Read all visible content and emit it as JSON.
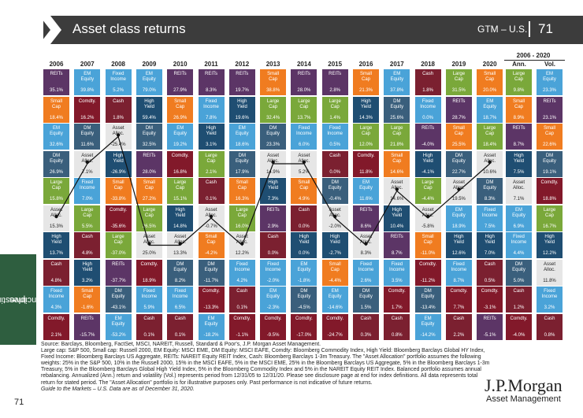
{
  "header": {
    "title": "Asset class returns",
    "series": "GTM – U.S.",
    "page": "71"
  },
  "side_tab": {
    "label": "Investing principles",
    "line1": "Investing",
    "line2": "principles"
  },
  "footer": {
    "page": "71"
  },
  "colors": {
    "REITs": "#5c3566",
    "EM Equity": "#4aa3d8",
    "Fixed Income": "#4aa3d8",
    "Small Cap": "#f07c20",
    "Cash": "#7b2030",
    "Comdty.": "#82192a",
    "DM Equity": "#3a5f7c",
    "Large Cap": "#7aa83a",
    "High Yield": "#1f4e72",
    "Asset Alloc.": "#e6e6e6"
  },
  "chart_data": {
    "type": "table",
    "title": "Asset class returns",
    "years": [
      "2006",
      "2007",
      "2008",
      "2009",
      "2010",
      "2011",
      "2012",
      "2013",
      "2014",
      "2015",
      "2016",
      "2017",
      "2018",
      "2019",
      "2020"
    ],
    "summary_header": {
      "range": "2006 - 2020",
      "ann": "Ann.",
      "vol": "Vol."
    },
    "columns": [
      [
        [
          "REITs",
          "35.1%"
        ],
        [
          "Small Cap",
          "18.4%"
        ],
        [
          "EM Equity",
          "32.6%"
        ],
        [
          "DM Equity",
          "26.9%"
        ],
        [
          "Large Cap",
          "15.8%"
        ],
        [
          "Asset Alloc.",
          "15.3%"
        ],
        [
          "High Yield",
          "13.7%"
        ],
        [
          "Cash",
          "4.8%"
        ],
        [
          "Fixed Income",
          "4.3%"
        ],
        [
          "Comdty.",
          "2.1%"
        ]
      ],
      [
        [
          "EM Equity",
          "39.8%"
        ],
        [
          "Comdty.",
          "16.2%"
        ],
        [
          "DM Equity",
          "11.6%"
        ],
        [
          "Asset Alloc.",
          "7.1%"
        ],
        [
          "Fixed Income",
          "7.0%"
        ],
        [
          "Large Cap",
          "5.5%"
        ],
        [
          "Cash",
          "4.8%"
        ],
        [
          "High Yield",
          "3.2%"
        ],
        [
          "Small Cap",
          "-1.6%"
        ],
        [
          "REITs",
          "-15.7%"
        ]
      ],
      [
        [
          "Fixed Income",
          "5.2%"
        ],
        [
          "Cash",
          "1.8%"
        ],
        [
          "Asset Alloc.",
          "-25.4%"
        ],
        [
          "High Yield",
          "-26.9%"
        ],
        [
          "Small Cap",
          "-33.8%"
        ],
        [
          "Comdty.",
          "-35.6%"
        ],
        [
          "Large Cap",
          "-37.0%"
        ],
        [
          "REITs",
          "-37.7%"
        ],
        [
          "DM Equity",
          "-43.1%"
        ],
        [
          "EM Equity",
          "-53.2%"
        ]
      ],
      [
        [
          "EM Equity",
          "79.0%"
        ],
        [
          "High Yield",
          "59.4%"
        ],
        [
          "DM Equity",
          "32.5%"
        ],
        [
          "REITs",
          "28.0%"
        ],
        [
          "Small Cap",
          "27.2%"
        ],
        [
          "Large Cap",
          "26.5%"
        ],
        [
          "Asset Alloc.",
          "25.0%"
        ],
        [
          "Comdty.",
          "18.9%"
        ],
        [
          "Fixed Income",
          "5.9%"
        ],
        [
          "Cash",
          "0.1%"
        ]
      ],
      [
        [
          "REITs",
          "27.9%"
        ],
        [
          "Small Cap",
          "26.9%"
        ],
        [
          "EM Equity",
          "19.2%"
        ],
        [
          "Comdty.",
          "16.8%"
        ],
        [
          "Large Cap",
          "15.1%"
        ],
        [
          "High Yield",
          "14.8%"
        ],
        [
          "Asset Alloc.",
          "13.3%"
        ],
        [
          "DM Equity",
          "8.2%"
        ],
        [
          "Fixed Income",
          "6.5%"
        ],
        [
          "Cash",
          "0.1%"
        ]
      ],
      [
        [
          "REITs",
          "8.3%"
        ],
        [
          "Fixed Income",
          "7.8%"
        ],
        [
          "High Yield",
          "3.1%"
        ],
        [
          "Large Cap",
          "2.1%"
        ],
        [
          "Cash",
          "0.1%"
        ],
        [
          "Asset Alloc.",
          "-0.7%"
        ],
        [
          "Small Cap",
          "-4.2%"
        ],
        [
          "DM Equity",
          "-11.7%"
        ],
        [
          "Comdty.",
          "-13.3%"
        ],
        [
          "EM Equity",
          "-18.2%"
        ]
      ],
      [
        [
          "REITs",
          "19.7%"
        ],
        [
          "High Yield",
          "19.6%"
        ],
        [
          "EM Equity",
          "18.6%"
        ],
        [
          "DM Equity",
          "17.9%"
        ],
        [
          "Small Cap",
          "16.3%"
        ],
        [
          "Large Cap",
          "16.0%"
        ],
        [
          "Asset Alloc.",
          "12.2%"
        ],
        [
          "Fixed Income",
          "4.2%"
        ],
        [
          "Cash",
          "0.1%"
        ],
        [
          "Comdty.",
          "-1.1%"
        ]
      ],
      [
        [
          "Small Cap",
          "38.8%"
        ],
        [
          "Large Cap",
          "32.4%"
        ],
        [
          "DM Equity",
          "23.3%"
        ],
        [
          "Asset Alloc.",
          "14.9%"
        ],
        [
          "High Yield",
          "7.3%"
        ],
        [
          "REITs",
          "2.9%"
        ],
        [
          "Cash",
          "0.0%"
        ],
        [
          "Fixed Income",
          "-2.0%"
        ],
        [
          "EM Equity",
          "-2.3%"
        ],
        [
          "Comdty.",
          "-9.5%"
        ]
      ],
      [
        [
          "REITs",
          "28.0%"
        ],
        [
          "Large Cap",
          "13.7%"
        ],
        [
          "Fixed Income",
          "6.0%"
        ],
        [
          "Asset Alloc.",
          "5.2%"
        ],
        [
          "Small Cap",
          "4.9%"
        ],
        [
          "Cash",
          "0.0%"
        ],
        [
          "High Yield",
          "0.0%"
        ],
        [
          "EM Equity",
          "-1.8%"
        ],
        [
          "DM Equity",
          "-4.5%"
        ],
        [
          "Comdty.",
          "-17.0%"
        ]
      ],
      [
        [
          "REITs",
          "2.8%"
        ],
        [
          "Large Cap",
          "1.4%"
        ],
        [
          "Fixed Income",
          "0.5%"
        ],
        [
          "Cash",
          "0.0%"
        ],
        [
          "DM Equity",
          "-0.4%"
        ],
        [
          "Asset Alloc.",
          "-2.0%"
        ],
        [
          "High Yield",
          "-2.7%"
        ],
        [
          "Small Cap",
          "-4.4%"
        ],
        [
          "EM Equity",
          "-14.6%"
        ],
        [
          "Comdty.",
          "-24.7%"
        ]
      ],
      [
        [
          "Small Cap",
          "21.3%"
        ],
        [
          "High Yield",
          "14.3%"
        ],
        [
          "Large Cap",
          "12.0%"
        ],
        [
          "Comdty.",
          "11.8%"
        ],
        [
          "EM Equity",
          "11.6%"
        ],
        [
          "REITs",
          "8.6%"
        ],
        [
          "Asset Alloc.",
          "8.3%"
        ],
        [
          "Fixed Income",
          "2.6%"
        ],
        [
          "DM Equity",
          "1.5%"
        ],
        [
          "Cash",
          "0.3%"
        ]
      ],
      [
        [
          "EM Equity",
          "37.8%"
        ],
        [
          "DM Equity",
          "25.6%"
        ],
        [
          "Large Cap",
          "21.8%"
        ],
        [
          "Small Cap",
          "14.6%"
        ],
        [
          "Asset Alloc.",
          "14.6%"
        ],
        [
          "High Yield",
          "10.4%"
        ],
        [
          "REITs",
          "8.7%"
        ],
        [
          "Fixed Income",
          "3.5%"
        ],
        [
          "Comdty.",
          "1.7%"
        ],
        [
          "Cash",
          "0.8%"
        ]
      ],
      [
        [
          "Cash",
          "1.8%"
        ],
        [
          "Fixed Income",
          "0.0%"
        ],
        [
          "REITs",
          "-4.0%"
        ],
        [
          "High Yield",
          "-4.1%"
        ],
        [
          "Large Cap",
          "-4.4%"
        ],
        [
          "Asset Alloc.",
          "-5.8%"
        ],
        [
          "Small Cap",
          "-11.0%"
        ],
        [
          "Comdty.",
          "-11.2%"
        ],
        [
          "DM Equity",
          "-13.4%"
        ],
        [
          "EM Equity",
          "-14.2%"
        ]
      ],
      [
        [
          "Large Cap",
          "31.5%"
        ],
        [
          "REITs",
          "28.7%"
        ],
        [
          "Small Cap",
          "25.5%"
        ],
        [
          "DM Equity",
          "22.7%"
        ],
        [
          "Asset Alloc.",
          "19.5%"
        ],
        [
          "EM Equity",
          "18.9%"
        ],
        [
          "High Yield",
          "12.6%"
        ],
        [
          "Fixed Income",
          "8.7%"
        ],
        [
          "Comdty.",
          "7.7%"
        ],
        [
          "Cash",
          "2.2%"
        ]
      ],
      [
        [
          "Small Cap",
          "20.0%"
        ],
        [
          "EM Equity",
          "18.7%"
        ],
        [
          "Large Cap",
          "18.4%"
        ],
        [
          "Asset Alloc.",
          "10.6%"
        ],
        [
          "DM Equity",
          "8.3%"
        ],
        [
          "Fixed Income",
          "7.5%"
        ],
        [
          "High Yield",
          "7.0%"
        ],
        [
          "Cash",
          "0.5%"
        ],
        [
          "Comdty.",
          "-3.1%"
        ],
        [
          "REITs",
          "-5.1%"
        ]
      ]
    ],
    "ann": [
      [
        "Large Cap",
        "9.8%"
      ],
      [
        "Small Cap",
        "8.9%"
      ],
      [
        "REITs",
        "8.7%"
      ],
      [
        "High Yield",
        "7.5%"
      ],
      [
        "Asset Alloc.",
        "7.1%"
      ],
      [
        "EM Equity",
        "6.9%"
      ],
      [
        "Fixed Income",
        "4.4%"
      ],
      [
        "DM Equity",
        "5.0%"
      ],
      [
        "Cash",
        "1.2%"
      ],
      [
        "Comdty.",
        "-4.0%"
      ]
    ],
    "vol": [
      [
        "EM Equity",
        "23.3%"
      ],
      [
        "REITs",
        "23.1%"
      ],
      [
        "Small Cap",
        "22.6%"
      ],
      [
        "DM Equity",
        "19.1%"
      ],
      [
        "Comdty.",
        "18.8%"
      ],
      [
        "Large Cap",
        "16.7%"
      ],
      [
        "High Yield",
        "12.2%"
      ],
      [
        "Asset Alloc.",
        "11.8%"
      ],
      [
        "Fixed Income",
        "3.2%"
      ],
      [
        "Cash",
        "0.8%"
      ]
    ]
  },
  "notes": {
    "source": "Source: Barclays, Bloomberg, FactSet, MSCI, NAREIT, Russell, Standard & Poor's, J.P. Morgan Asset Management.",
    "body": "Large cap: S&P 500, Small cap: Russell 2000, EM Equity: MSCI EME, DM Equity: MSCI EAFE, Comdty: Bloomberg Commodity Index, High Yield: Bloomberg Barclays Global HY Index, Fixed Income: Bloomberg Barclays US Aggregate, REITs: NAREIT Equity REIT Index, Cash: Bloomberg Barclays 1-3m Treasury. The \"Asset Allocation\" portfolio assumes the following weights: 25% in the S&P 500, 10% in the Russell 2000, 15% in the MSCI EAFE, 5% in the MSCI EME, 25% in the Bloomberg Barclays US Aggregate, 5% in the Bloomberg Barclays 1-3m Treasury, 5% in the Bloomberg Barclays Global High Yield Index, 5% in the Bloomberg Commodity Index and 5% in the NAREIT Equity REIT Index. Balanced portfolio assumes annual rebalancing. Annualized (Ann.) return and volatility (Vol.) represents period from 12/31/05 to 12/31/20. Please see disclosure page at end for index definitions. All data represents total return for stated period. The \"Asset Allocation\" portfolio is for illustrative purposes only. Past performance is not indicative of future returns.",
    "guide": "Guide to the Markets – U.S. Data are as of December 31, 2020."
  },
  "logo": {
    "name": "J.P.Morgan",
    "sub": "Asset Management"
  }
}
